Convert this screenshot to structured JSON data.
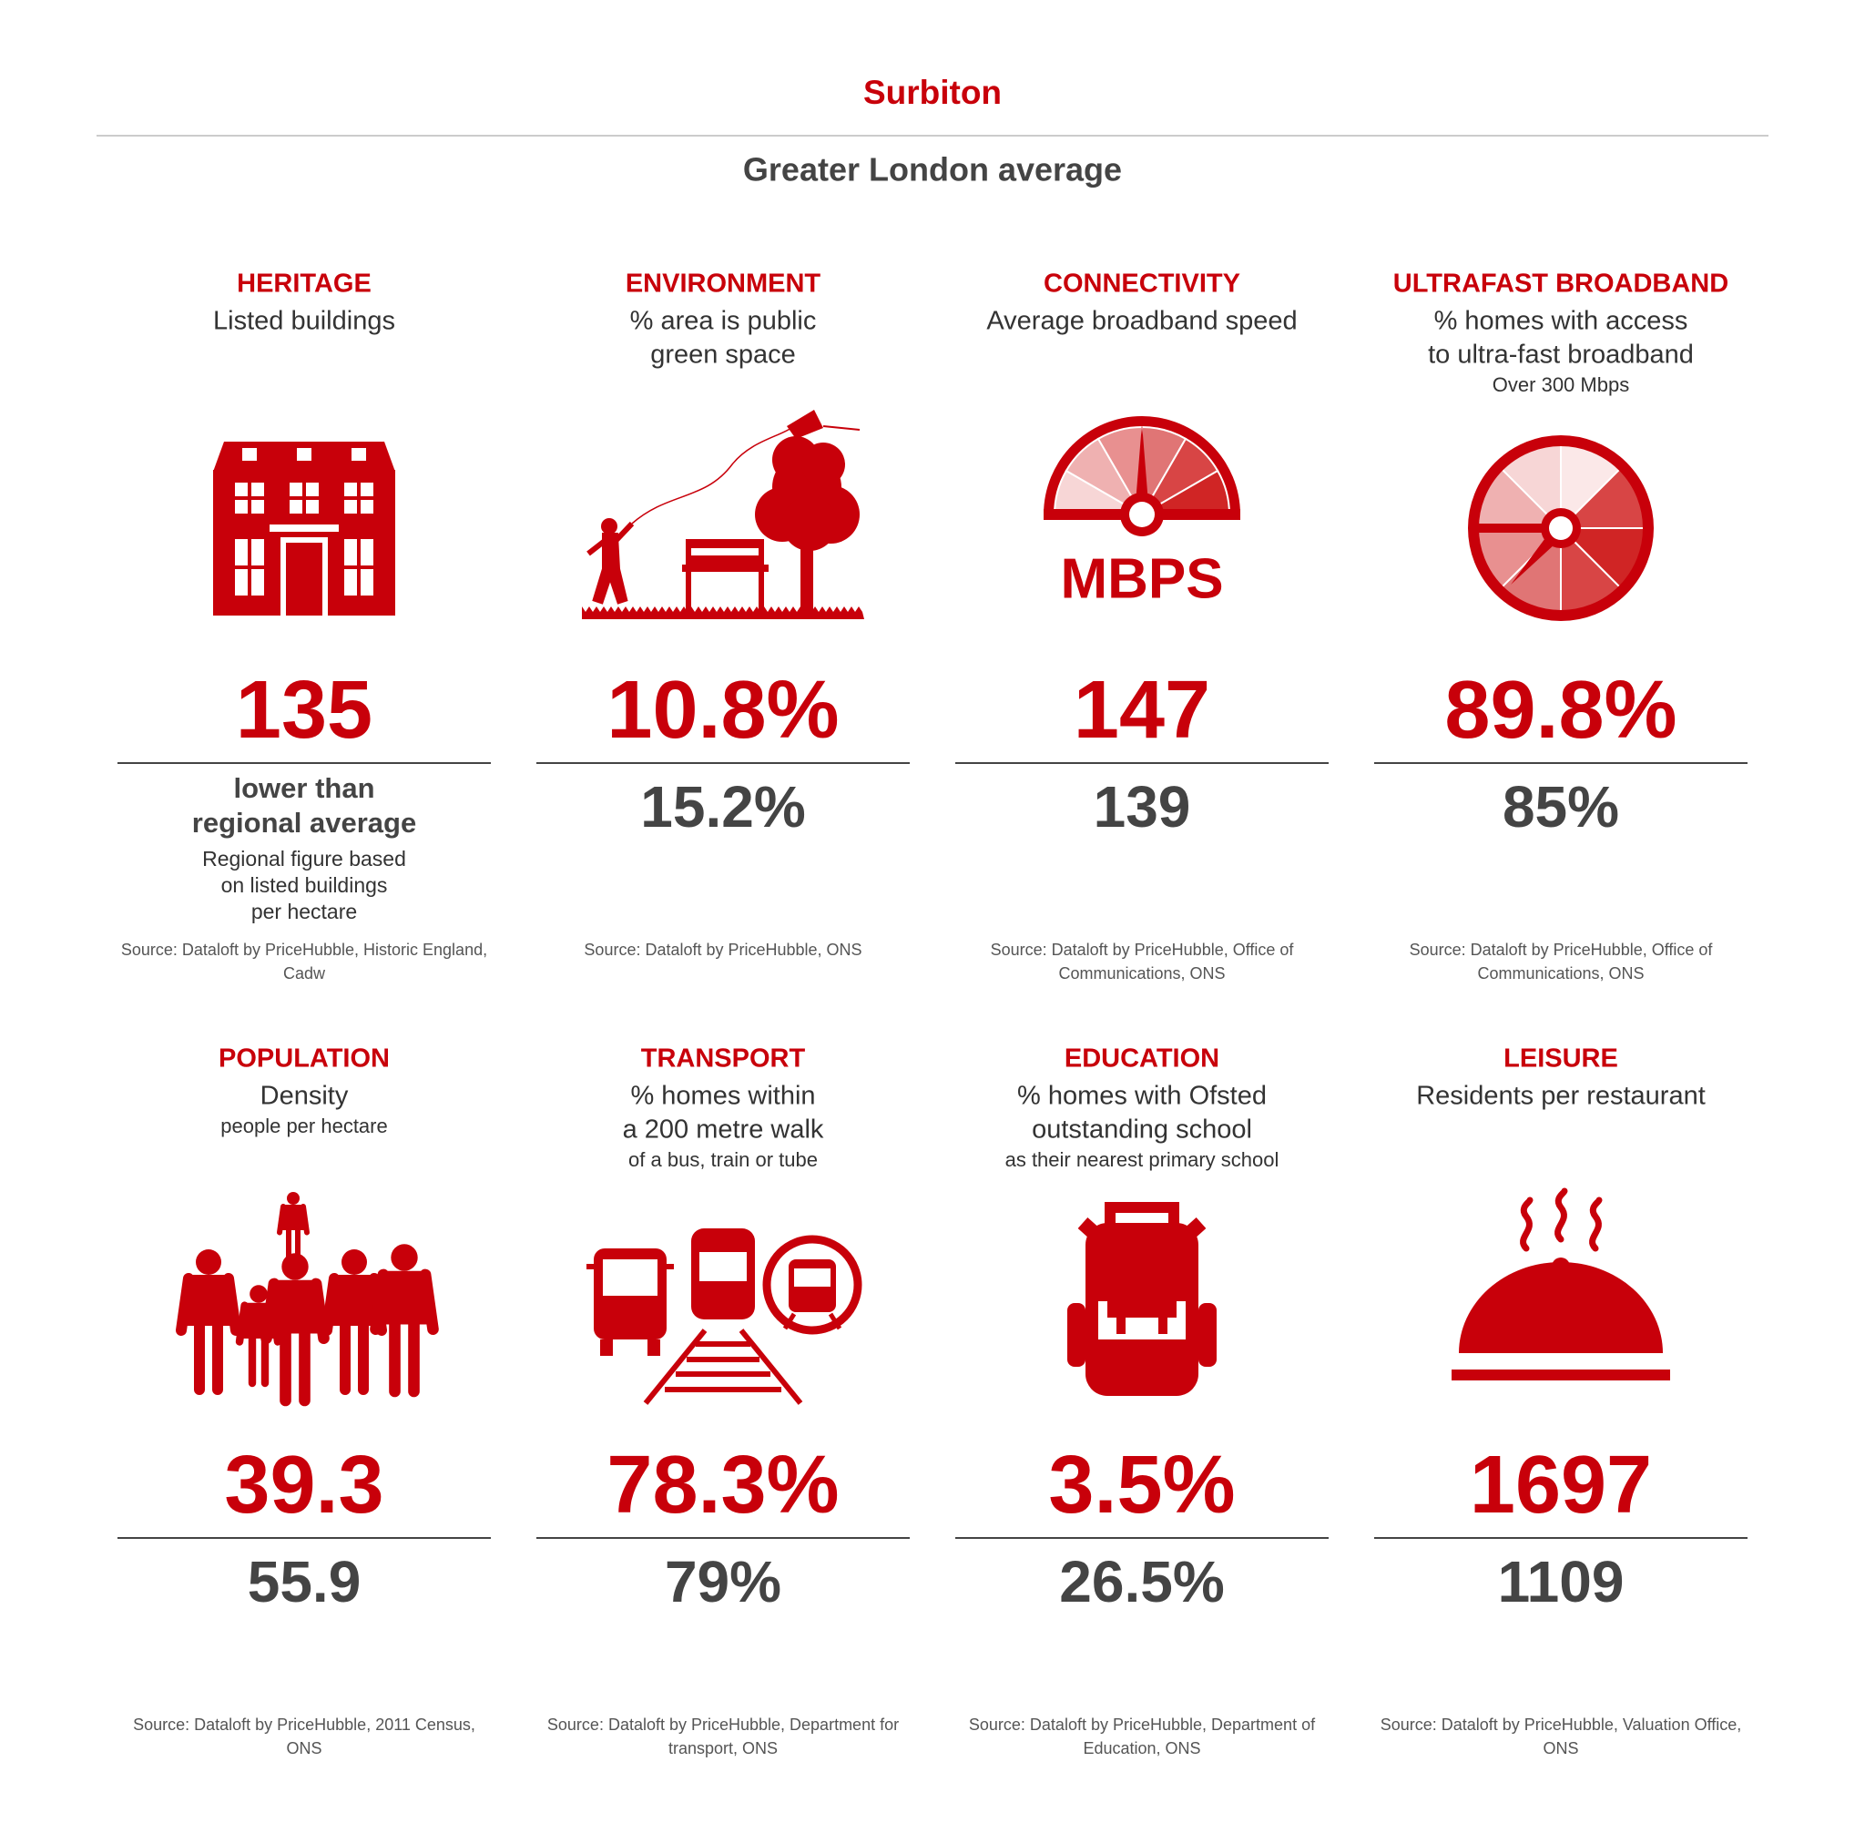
{
  "header": {
    "title": "Surbiton",
    "subtitle": "Greater London average"
  },
  "cards": [
    {
      "heading": "HERITAGE",
      "description": [
        "Listed buildings"
      ],
      "detail": [],
      "value": "135",
      "note": {
        "title": [
          "lower than",
          "regional average"
        ],
        "lines": [
          "Regional figure based",
          "on listed buildings",
          "per hectare"
        ]
      },
      "source": [
        "Source: Dataloft by PriceHubble, Historic England,",
        "Cadw"
      ]
    },
    {
      "heading": "ENVIRONMENT",
      "description": [
        "% area is public",
        "green space"
      ],
      "detail": [],
      "value": "10.8%",
      "average": "15.2%",
      "source": [
        "Source: Dataloft by PriceHubble, ONS"
      ]
    },
    {
      "heading": "CONNECTIVITY",
      "description": [
        "Average broadband speed"
      ],
      "detail": [],
      "icon_text": "MBPS",
      "value": "147",
      "average": "139",
      "source": [
        "Source: Dataloft by PriceHubble, Office of",
        "Communications, ONS"
      ]
    },
    {
      "heading": "ULTRAFAST BROADBAND",
      "description": [
        "% homes with access",
        "to ultra-fast broadband"
      ],
      "detail": [
        "Over 300 Mbps"
      ],
      "value": "89.8%",
      "average": "85%",
      "source": [
        "Source: Dataloft by PriceHubble, Office of",
        "Communications, ONS"
      ]
    },
    {
      "heading": "POPULATION",
      "description": [
        "Density"
      ],
      "detail": [
        "people per hectare"
      ],
      "value": "39.3",
      "average": "55.9",
      "source": [
        "Source: Dataloft by PriceHubble, 2011 Census,",
        "ONS"
      ]
    },
    {
      "heading": "TRANSPORT",
      "description": [
        "% homes within",
        "a 200 metre walk"
      ],
      "detail": [
        "of a bus, train or tube"
      ],
      "value": "78.3%",
      "average": "79%",
      "source": [
        "Source: Dataloft by PriceHubble, Department for",
        "transport, ONS"
      ]
    },
    {
      "heading": "EDUCATION",
      "description": [
        "% homes with Ofsted",
        "outstanding school"
      ],
      "detail": [
        "as their nearest primary school"
      ],
      "value": "3.5%",
      "average": "26.5%",
      "source": [
        "Source: Dataloft by PriceHubble, Department of",
        "Education, ONS"
      ]
    },
    {
      "heading": "LEISURE",
      "description": [
        "Residents per restaurant"
      ],
      "detail": [],
      "value": "1697",
      "average": "1109",
      "source": [
        "Source: Dataloft by PriceHubble, Valuation Office,",
        "ONS"
      ]
    }
  ]
}
